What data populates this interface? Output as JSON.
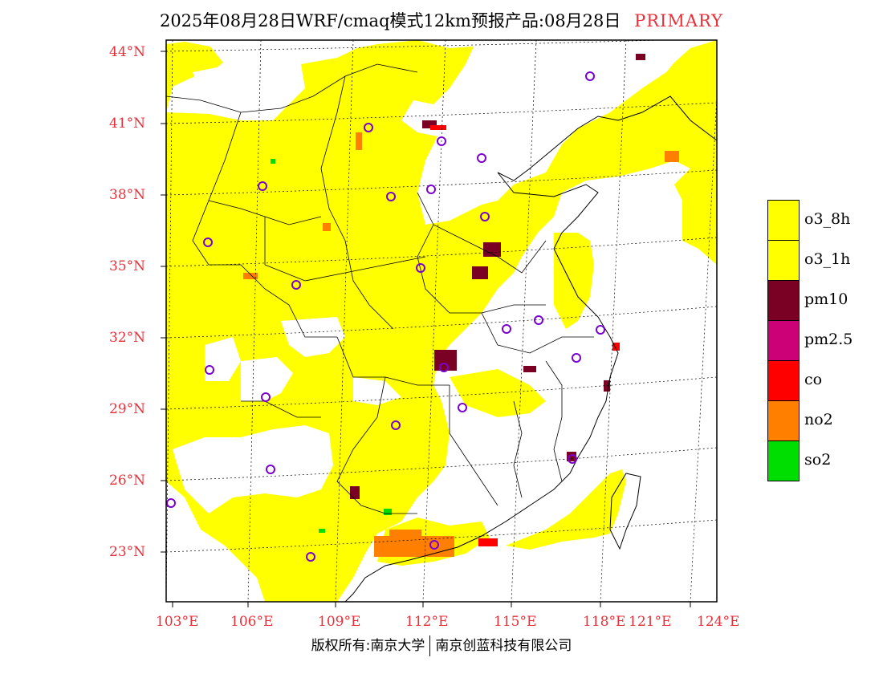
{
  "title": {
    "main": "2025年08月28日WRF/cmaq模式12km预报产品:08月28日",
    "tag": "PRIMARY"
  },
  "map": {
    "lat_labels": [
      "44°N",
      "41°N",
      "38°N",
      "35°N",
      "32°N",
      "29°N",
      "26°N",
      "23°N"
    ],
    "lon_labels": [
      "103°E",
      "106°E",
      "109°E",
      "112°E",
      "115°E",
      "118°E",
      "121°E",
      "124°E"
    ]
  },
  "legend": {
    "items": [
      {
        "label": "o3_8h",
        "color": "#ffff00"
      },
      {
        "label": "o3_1h",
        "color": "#ffff00"
      },
      {
        "label": "pm10",
        "color": "#7a0024"
      },
      {
        "label": "pm2.5",
        "color": "#cc0077"
      },
      {
        "label": "co",
        "color": "#ff0000"
      },
      {
        "label": "no2",
        "color": "#ff8000"
      },
      {
        "label": "so2",
        "color": "#00dd00"
      }
    ]
  },
  "colors": {
    "o3": "#ffff00",
    "pm10": "#7a0024",
    "co": "#ff0000",
    "no2": "#ff8000",
    "so2": "#00dd00",
    "station_marker": "#7a00d0",
    "axis_label": "#e8303a"
  },
  "footer": {
    "left": "版权所有:南京大学",
    "right": "南京创蓝科技有限公司"
  }
}
